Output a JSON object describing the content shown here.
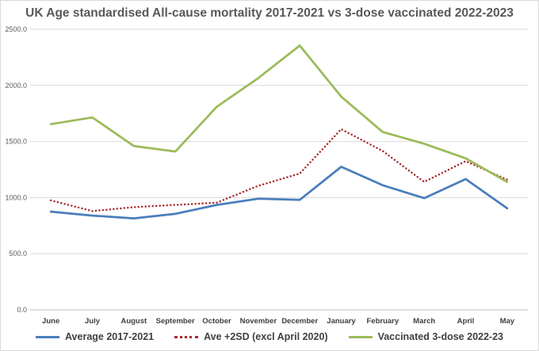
{
  "chart_data": {
    "type": "line",
    "title": "UK Age standardised All-cause mortality 2017-2021 vs 3-dose vaccinated 2022-2023",
    "categories": [
      "June",
      "July",
      "August",
      "September",
      "October",
      "November",
      "December",
      "January",
      "February",
      "March",
      "April",
      "May"
    ],
    "y_ticks": [
      "0.0",
      "500.0",
      "1000.0",
      "1500.0",
      "2000.0",
      "2500.0"
    ],
    "ylim": [
      0,
      2500
    ],
    "grid": true,
    "legend_position": "bottom",
    "series": [
      {
        "name": "Average 2017-2021",
        "color": "#4a7ebb",
        "style": "solid",
        "values": [
          875,
          840,
          815,
          855,
          935,
          990,
          980,
          1275,
          1110,
          995,
          1165,
          905
        ]
      },
      {
        "name": "Ave +2SD (excl April 2020)",
        "color": "#a52a2a",
        "style": "dotted",
        "values": [
          975,
          880,
          915,
          935,
          955,
          1105,
          1215,
          1610,
          1415,
          1140,
          1325,
          1160
        ]
      },
      {
        "name": "Vaccinated 3-dose 2022-23",
        "color": "#9bbb59",
        "style": "solid",
        "values": [
          1655,
          1715,
          1460,
          1410,
          1810,
          2065,
          2355,
          1900,
          1585,
          1480,
          1350,
          1140
        ]
      }
    ]
  }
}
